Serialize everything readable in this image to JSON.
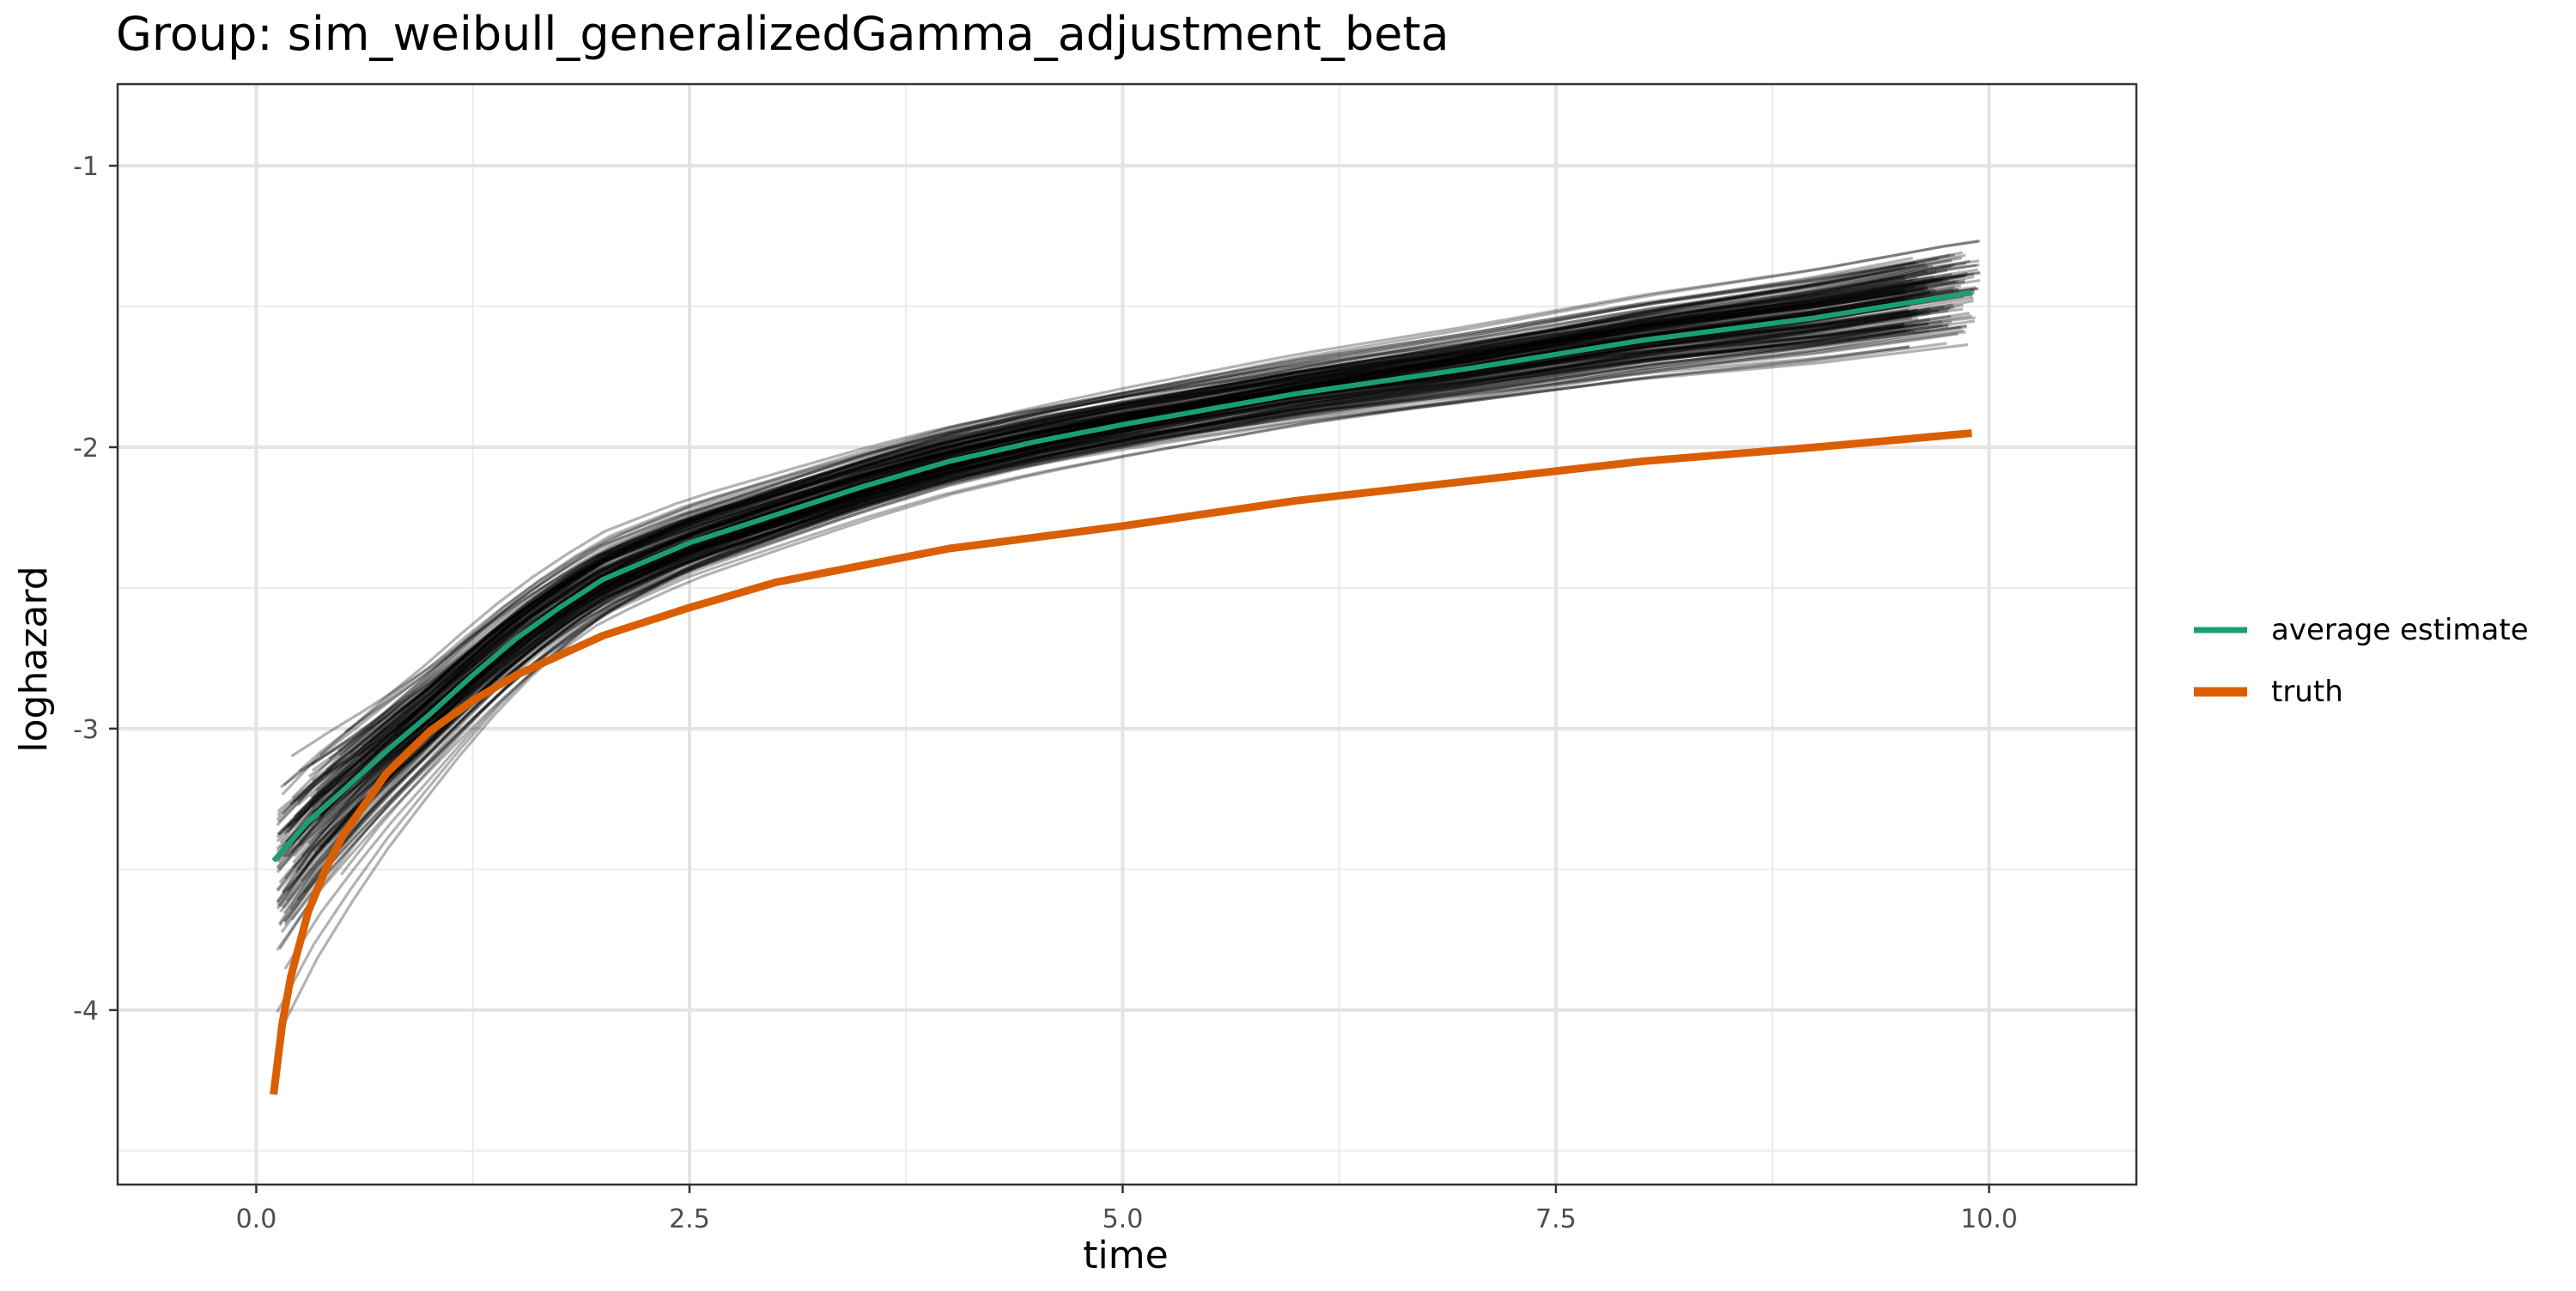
{
  "chart_data": {
    "type": "line",
    "title": "Group: sim_weibull_generalizedGamma_adjustment_beta",
    "xlabel": "time",
    "ylabel": "loghazard",
    "xlim": [
      -0.8,
      10.85
    ],
    "ylim": [
      -4.62,
      -0.71
    ],
    "x_ticks": [
      0.0,
      2.5,
      5.0,
      7.5,
      10.0
    ],
    "x_tick_labels": [
      "0.0",
      "2.5",
      "5.0",
      "7.5",
      "10.0"
    ],
    "y_ticks": [
      -4,
      -3,
      -2,
      -1
    ],
    "y_tick_labels": [
      "-4",
      "-3",
      "-2",
      "-1"
    ],
    "grid": true,
    "legend_position": "right",
    "legend": [
      {
        "label": "average estimate",
        "color": "#1b9e77"
      },
      {
        "label": "truth",
        "color": "#d95f02"
      }
    ],
    "series": [
      {
        "name": "average estimate",
        "color": "#1b9e77",
        "x": [
          0.1,
          0.3,
          0.5,
          0.75,
          1.0,
          1.25,
          1.5,
          1.75,
          2.0,
          2.5,
          3.0,
          3.5,
          4.0,
          4.5,
          5.0,
          6.0,
          7.0,
          8.0,
          9.0,
          9.9
        ],
        "y": [
          -3.47,
          -3.33,
          -3.22,
          -3.08,
          -2.95,
          -2.81,
          -2.68,
          -2.57,
          -2.47,
          -2.34,
          -2.24,
          -2.14,
          -2.05,
          -1.98,
          -1.92,
          -1.81,
          -1.72,
          -1.62,
          -1.54,
          -1.45
        ]
      },
      {
        "name": "truth",
        "color": "#d95f02",
        "x": [
          0.1,
          0.15,
          0.2,
          0.3,
          0.4,
          0.5,
          0.75,
          1.0,
          1.25,
          1.5,
          2.0,
          2.5,
          3.0,
          4.0,
          5.0,
          6.0,
          7.0,
          8.0,
          9.0,
          9.9
        ],
        "y": [
          -4.3,
          -4.05,
          -3.88,
          -3.65,
          -3.5,
          -3.38,
          -3.16,
          -3.01,
          -2.9,
          -2.81,
          -2.67,
          -2.57,
          -2.48,
          -2.36,
          -2.28,
          -2.19,
          -2.12,
          -2.05,
          -2.0,
          -1.95
        ]
      }
    ],
    "background_lines": {
      "description_color": "#000000",
      "count": 160,
      "opacity": 0.3
    }
  }
}
